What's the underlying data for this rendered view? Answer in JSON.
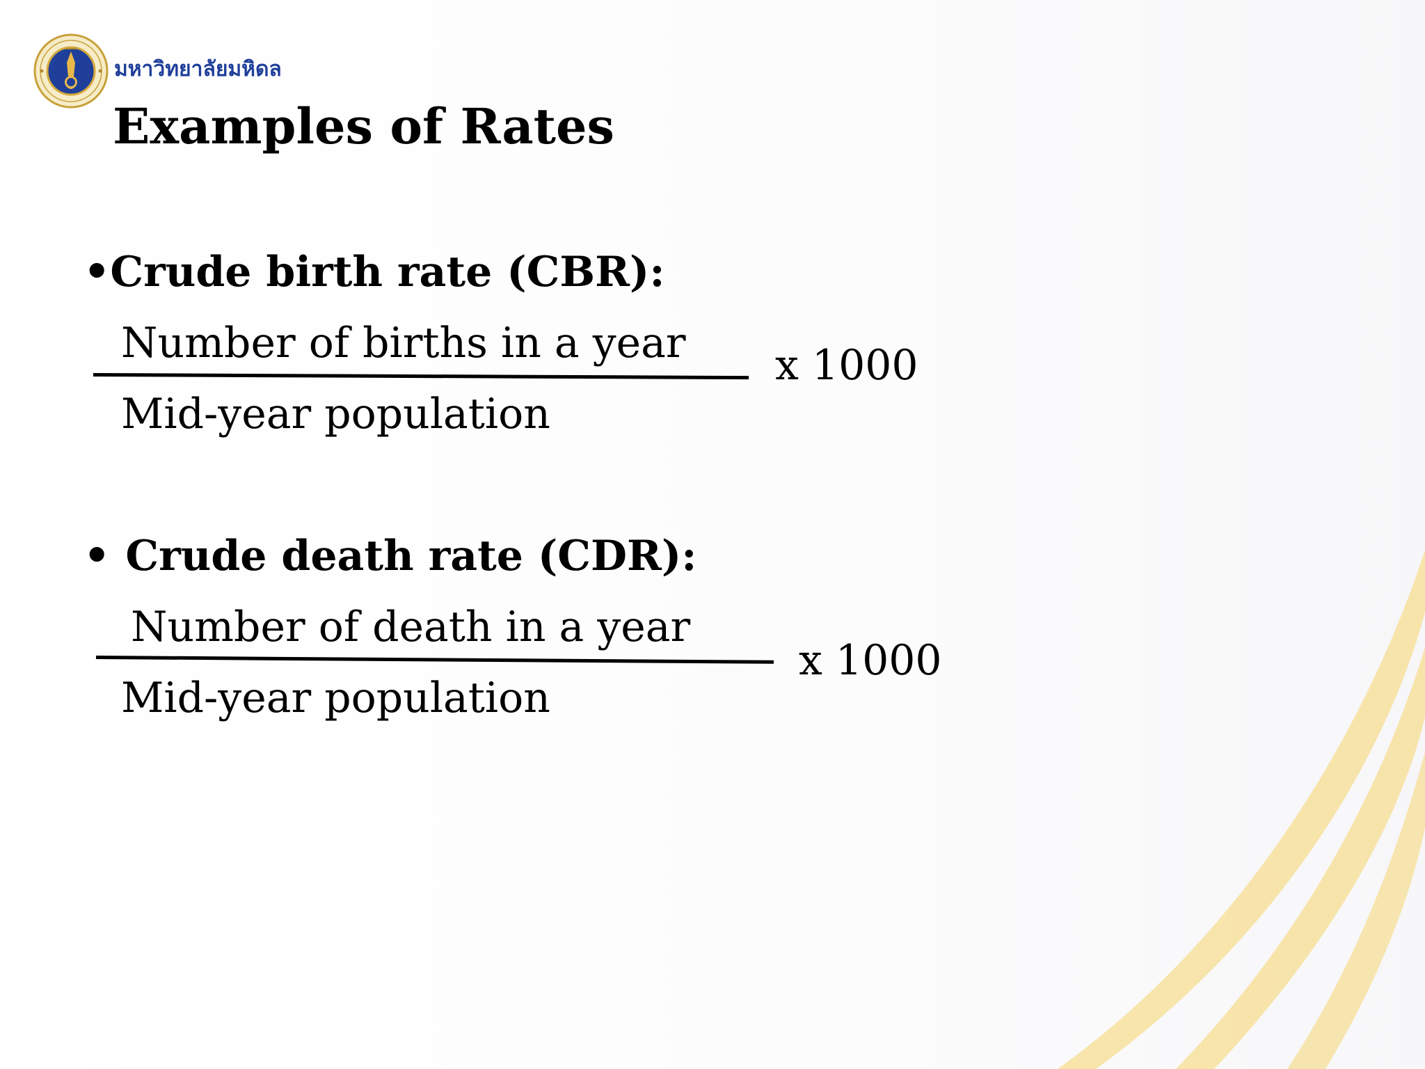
{
  "header": {
    "university_name": "มหาวิทยาลัยมหิดล"
  },
  "slide": {
    "title": "Examples of Rates",
    "sections": [
      {
        "bullet": "•",
        "heading": "Crude birth rate (CBR):",
        "numerator": "Number of births in a year",
        "denominator": "Mid-year population",
        "multiplier": "x 1000"
      },
      {
        "bullet": "•",
        "heading": "Crude death rate (CDR):",
        "numerator": "Number of death in a year",
        "denominator": "Mid-year population",
        "multiplier": "x 1000"
      }
    ]
  },
  "colors": {
    "brand_blue": "#1f3f9a",
    "logo_gold": "#d4a93c",
    "swoosh_gold": "#f6dc8c"
  }
}
